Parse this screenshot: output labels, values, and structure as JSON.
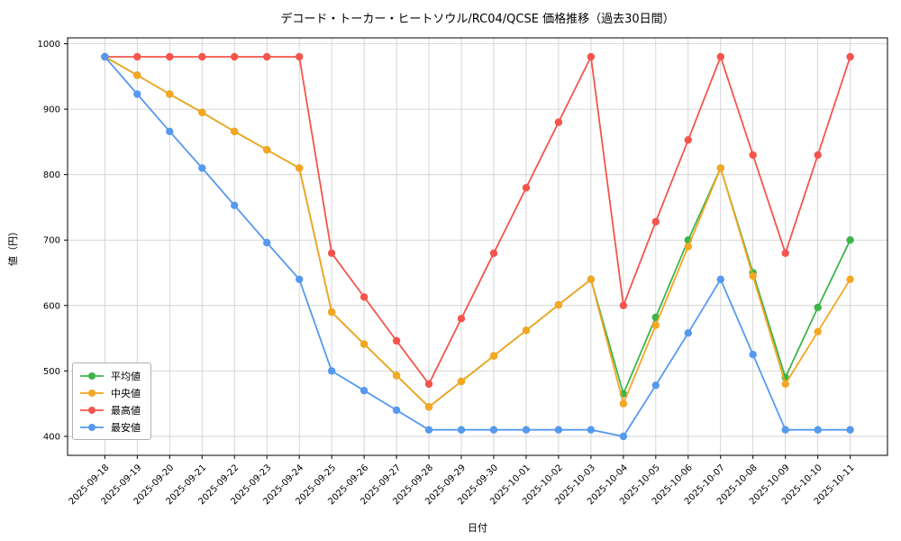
{
  "chart_data": {
    "type": "line",
    "title": "デコード・トーカー・ヒートソウル/RC04/QCSE 価格推移（過去30日間）",
    "xlabel": "日付",
    "ylabel": "値（円）",
    "ylim": [
      371,
      1009
    ],
    "yticks": [
      400,
      500,
      600,
      700,
      800,
      900,
      1000
    ],
    "grid": true,
    "legend_position": "lower left",
    "categories": [
      "2025-09-18",
      "2025-09-19",
      "2025-09-20",
      "2025-09-21",
      "2025-09-22",
      "2025-09-23",
      "2025-09-24",
      "2025-09-25",
      "2025-09-26",
      "2025-09-27",
      "2025-09-28",
      "2025-09-29",
      "2025-09-30",
      "2025-10-01",
      "2025-10-02",
      "2025-10-03",
      "2025-10-04",
      "2025-10-05",
      "2025-10-06",
      "2025-10-07",
      "2025-10-08",
      "2025-10-09",
      "2025-10-10",
      "2025-10-11"
    ],
    "series": [
      {
        "name": "平均値",
        "color": "#3cb54a",
        "values": [
          980,
          952,
          923,
          895,
          866,
          838,
          810,
          590,
          541,
          493,
          445,
          484,
          523,
          562,
          601,
          640,
          465,
          582,
          700,
          810,
          650,
          490,
          597,
          700
        ]
      },
      {
        "name": "中央値",
        "color": "#f5a623",
        "values": [
          980,
          952,
          923,
          895,
          866,
          838,
          810,
          590,
          541,
          493,
          445,
          484,
          523,
          562,
          601,
          640,
          450,
          570,
          690,
          810,
          645,
          480,
          560,
          640
        ]
      },
      {
        "name": "最高値",
        "color": "#f4544c",
        "values": [
          980,
          980,
          980,
          980,
          980,
          980,
          980,
          680,
          613,
          546,
          480,
          580,
          680,
          780,
          880,
          980,
          600,
          728,
          853,
          980,
          830,
          680,
          830,
          980
        ]
      },
      {
        "name": "最安値",
        "color": "#5599f0",
        "values": [
          980,
          923,
          866,
          810,
          753,
          696,
          640,
          500,
          470,
          440,
          410,
          410,
          410,
          410,
          410,
          410,
          400,
          478,
          558,
          640,
          525,
          410,
          410,
          410
        ]
      }
    ]
  }
}
